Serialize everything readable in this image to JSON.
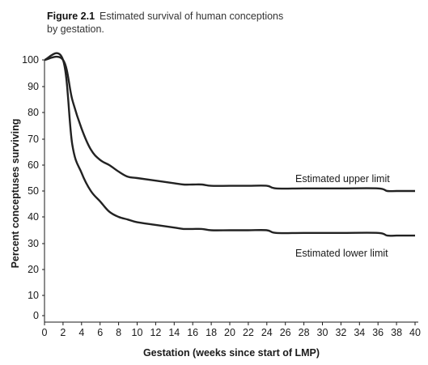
{
  "caption": {
    "figure_label": "Figure 2.1",
    "text": "Estimated survival of human conceptions by gestation."
  },
  "chart_data": {
    "type": "line",
    "xlabel": "Gestation (weeks since start of LMP)",
    "ylabel": "Percent conceptuses surviving",
    "xlim": [
      0,
      40
    ],
    "ylim": [
      0,
      100
    ],
    "x_ticks": [
      0,
      2,
      4,
      6,
      8,
      10,
      12,
      14,
      16,
      18,
      20,
      22,
      24,
      26,
      28,
      30,
      32,
      34,
      36,
      38,
      40
    ],
    "y_ticks": [
      0,
      10,
      20,
      30,
      40,
      50,
      60,
      70,
      80,
      90,
      100
    ],
    "grid": false,
    "line_color": "#222222",
    "series": [
      {
        "name": "Estimated upper limit",
        "x": [
          0,
          2,
          3,
          4,
          5,
          6,
          7,
          8,
          9,
          10,
          12,
          14,
          15,
          16,
          17,
          18,
          20,
          22,
          24,
          25,
          28,
          32,
          36,
          37,
          38,
          40
        ],
        "y": [
          100,
          100,
          85,
          74,
          66,
          62,
          60,
          57.5,
          55.5,
          55,
          54,
          53,
          52.5,
          52.5,
          52.5,
          52,
          52,
          52,
          52,
          51,
          51,
          51,
          51,
          50,
          50,
          50
        ]
      },
      {
        "name": "Estimated lower limit",
        "x": [
          0,
          2,
          3,
          4,
          5,
          6,
          7,
          8,
          9,
          10,
          12,
          14,
          15,
          16,
          17,
          18,
          20,
          22,
          24,
          25,
          28,
          32,
          36,
          37,
          38,
          40
        ],
        "y": [
          100,
          100,
          68,
          57,
          50,
          46,
          42,
          40,
          39,
          38,
          37,
          36,
          35.5,
          35.5,
          35.5,
          35,
          35,
          35,
          35,
          34,
          34,
          34,
          34,
          33,
          33,
          33
        ]
      }
    ]
  }
}
